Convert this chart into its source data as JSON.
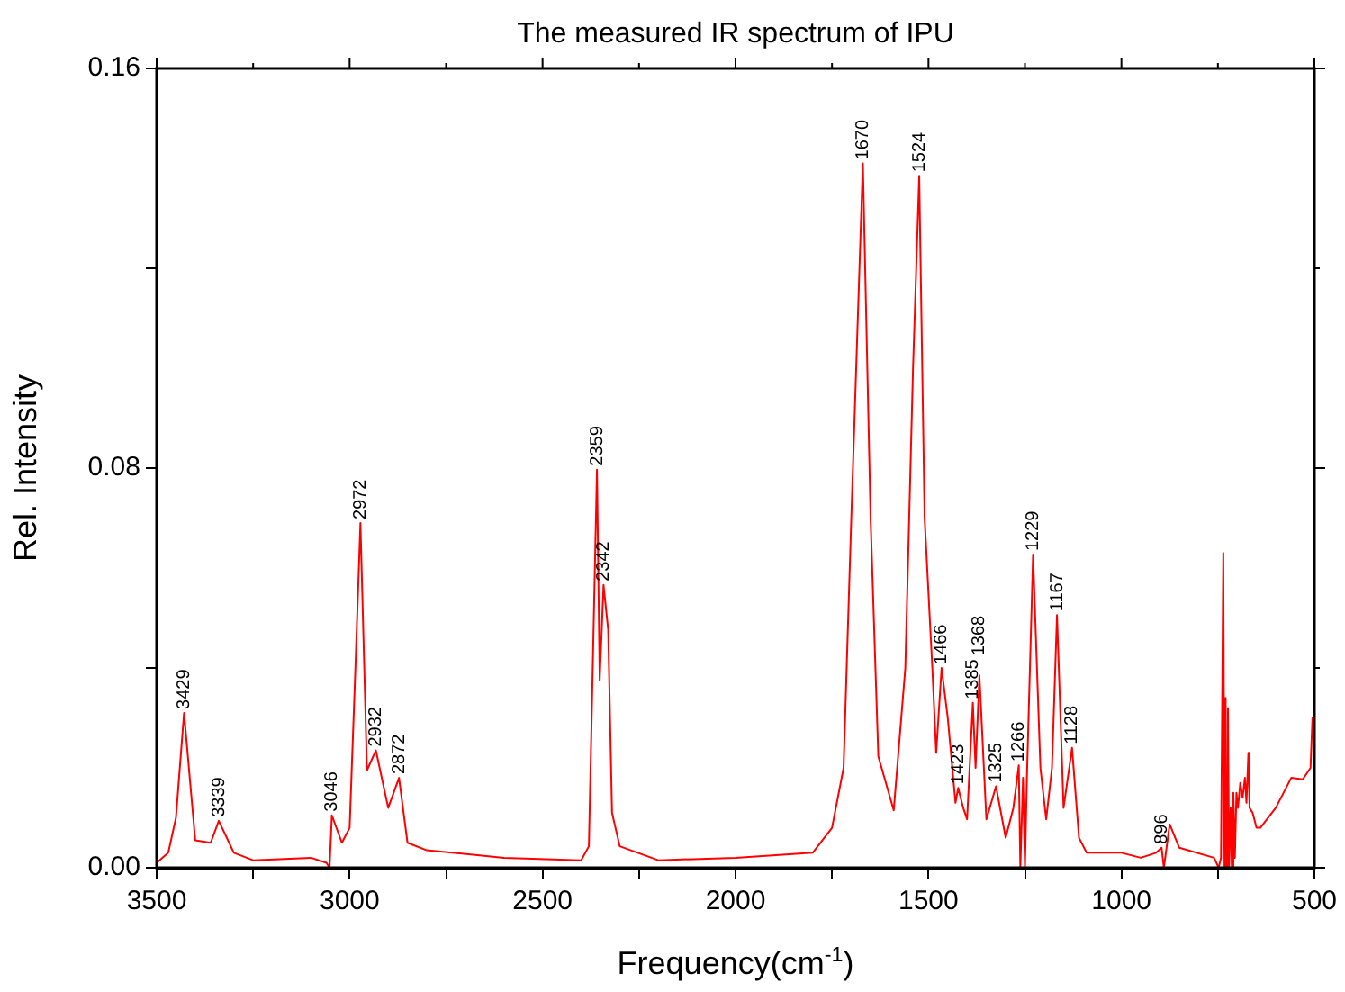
{
  "chart_data": {
    "type": "line",
    "title": "The measured IR spectrum of IPU",
    "xlabel": "Frequency(cm$^{-1}$)",
    "ylabel": "Rel. Intensity",
    "xlim": [
      3500,
      500
    ],
    "xticks": [
      3500,
      {
        "value": 3250,
        "label": null
      },
      3000,
      {
        "value": 2750,
        "label": null
      },
      2500,
      {
        "value": 2250,
        "label": null
      },
      2000,
      {
        "value": 1750,
        "label": null
      },
      1500,
      {
        "value": 1250,
        "label": null
      },
      1000,
      {
        "value": 750,
        "label": null
      },
      500
    ],
    "ylim": [
      0,
      0.16
    ],
    "yticks": [
      {
        "value": 0,
        "label": "0.00"
      },
      {
        "value": 0.04,
        "label": null
      },
      {
        "value": 0.08,
        "label": "0.08"
      },
      {
        "value": 0.12,
        "label": null
      },
      {
        "value": 0.16,
        "label": "0.16"
      }
    ],
    "grid": false,
    "legend": false,
    "marker": "none",
    "line_style": "solid",
    "series": [
      {
        "color": "#ff0000",
        "x": [
          3500,
          3470,
          3450,
          3429,
          3400,
          3360,
          3339,
          3300,
          3250,
          3100,
          3060,
          3052,
          3046,
          3020,
          3000,
          2985,
          2972,
          2955,
          2932,
          2900,
          2872,
          2850,
          2800,
          2600,
          2400,
          2380,
          2370,
          2359,
          2352,
          2342,
          2330,
          2320,
          2300,
          2200,
          2000,
          1800,
          1750,
          1720,
          1700,
          1670,
          1650,
          1630,
          1590,
          1560,
          1540,
          1524,
          1510,
          1490,
          1480,
          1466,
          1450,
          1430,
          1423,
          1410,
          1400,
          1385,
          1378,
          1368,
          1350,
          1325,
          1300,
          1280,
          1266,
          1262,
          1255,
          1250,
          1245,
          1229,
          1210,
          1195,
          1180,
          1167,
          1150,
          1128,
          1110,
          1090,
          1000,
          950,
          910,
          896,
          890,
          875,
          850,
          760,
          748,
          742,
          736,
          733,
          730,
          727,
          724,
          721,
          717,
          714,
          710,
          706,
          702,
          698,
          692,
          686,
          680,
          676,
          671,
          668,
          660,
          650,
          640,
          600,
          560,
          530,
          510,
          505,
          500
        ],
        "values": [
          0.001,
          0.003,
          0.01,
          0.031,
          0.0055,
          0.005,
          0.0094,
          0.003,
          0.0015,
          0.002,
          0.001,
          0,
          0.0105,
          0.005,
          0.008,
          0.04,
          0.069,
          0.0195,
          0.0235,
          0.012,
          0.018,
          0.005,
          0.0035,
          0.002,
          0.0015,
          0.0043,
          0.04,
          0.0797,
          0.0375,
          0.0566,
          0.0476,
          0.011,
          0.0043,
          0.0015,
          0.002,
          0.003,
          0.008,
          0.02,
          0.07,
          0.141,
          0.07,
          0.0223,
          0.0115,
          0.04,
          0.1,
          0.1385,
          0.07,
          0.04,
          0.023,
          0.04,
          0.03,
          0.013,
          0.016,
          0.012,
          0.0097,
          0.033,
          0.02,
          0.0385,
          0.0097,
          0.0163,
          0.006,
          0.012,
          0.0205,
          0,
          0.018,
          0,
          0.018,
          0.0627,
          0.02,
          0.0097,
          0.02,
          0.0506,
          0.012,
          0.024,
          0.006,
          0.003,
          0.003,
          0.002,
          0.003,
          0.004,
          0,
          0.0087,
          0.004,
          0.002,
          0,
          0.002,
          0.063,
          0,
          0.034,
          0,
          0.032,
          0,
          0.012,
          0,
          0.015,
          0.002,
          0.015,
          0.012,
          0.017,
          0.014,
          0.018,
          0.013,
          0.023,
          0.012,
          0.011,
          0.008,
          0.008,
          0.012,
          0.018,
          0.0177,
          0.02,
          0.03,
          0.027
        ]
      }
    ],
    "annotations": [
      {
        "text": "3429",
        "x": 3429,
        "y": 0.031
      },
      {
        "text": "3339",
        "x": 3339,
        "y": 0.0094
      },
      {
        "text": "3046",
        "x": 3046,
        "y": 0.0105
      },
      {
        "text": "2972",
        "x": 2972,
        "y": 0.069
      },
      {
        "text": "2932",
        "x": 2932,
        "y": 0.0235
      },
      {
        "text": "2872",
        "x": 2872,
        "y": 0.018
      },
      {
        "text": "2359",
        "x": 2359,
        "y": 0.0797
      },
      {
        "text": "2342",
        "x": 2342,
        "y": 0.0566
      },
      {
        "text": "1670",
        "x": 1670,
        "y": 0.141
      },
      {
        "text": "1524",
        "x": 1524,
        "y": 0.1385
      },
      {
        "text": "1466",
        "x": 1466,
        "y": 0.04
      },
      {
        "text": "1423",
        "x": 1423,
        "y": 0.016
      },
      {
        "text": "1385",
        "x": 1385,
        "y": 0.033
      },
      {
        "text": "1368",
        "x": 1368,
        "y": 0.0385
      },
      {
        "text": "1325",
        "x": 1325,
        "y": 0.0163
      },
      {
        "text": "1266",
        "x": 1266,
        "y": 0.0205
      },
      {
        "text": "1229",
        "x": 1229,
        "y": 0.0627
      },
      {
        "text": "1167",
        "x": 1167,
        "y": 0.0506
      },
      {
        "text": "1128",
        "x": 1128,
        "y": 0.024
      },
      {
        "text": "896",
        "x": 896,
        "y": 0.004
      }
    ]
  }
}
